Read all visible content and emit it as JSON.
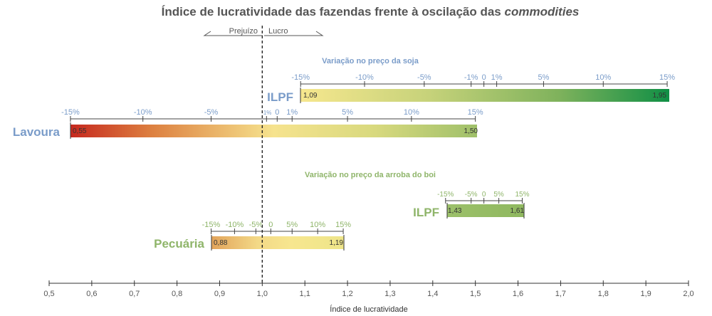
{
  "title_main": "Índice de lucratividade das fazendas frente à oscilação das",
  "title_italic": "commodities",
  "legend": {
    "loss": "Prejuízo",
    "profit": "Lucro"
  },
  "chart_data": {
    "type": "bar",
    "xlabel": "Índice de lucratividade",
    "xlim": [
      0.5,
      2.0
    ],
    "x_ticks": [
      0.5,
      0.6,
      0.7,
      0.8,
      0.9,
      1.0,
      1.1,
      1.2,
      1.3,
      1.4,
      1.5,
      1.6,
      1.7,
      1.8,
      1.9,
      2.0
    ],
    "x_tick_labels": [
      "0,5",
      "0,6",
      "0,7",
      "0,8",
      "0,9",
      "1,0",
      "1,1",
      "1,2",
      "1,3",
      "1,4",
      "1,5",
      "1,6",
      "1,7",
      "1,8",
      "1,9",
      "2,0"
    ],
    "breakeven": 1.0,
    "groups": [
      {
        "heading": "Variação no preço da soja",
        "color": "#7a9cc9",
        "bars": [
          {
            "name": "ILPF",
            "min": 1.09,
            "max": 1.95,
            "min_label": "1,09",
            "max_label": "1,95",
            "scale": [
              {
                "label": "-15%",
                "x": 1.09
              },
              {
                "label": "-10%",
                "x": 1.24
              },
              {
                "label": "-5%",
                "x": 1.38
              },
              {
                "label": "-1%",
                "x": 1.49
              },
              {
                "label": "0",
                "x": 1.52
              },
              {
                "label": "1%",
                "x": 1.55
              },
              {
                "label": "5%",
                "x": 1.66
              },
              {
                "label": "10%",
                "x": 1.8
              },
              {
                "label": "15%",
                "x": 1.95
              }
            ]
          },
          {
            "name": "Lavoura",
            "min": 0.55,
            "max": 1.5,
            "min_label": "0,55",
            "max_label": "1,50",
            "scale": [
              {
                "label": "-15%",
                "x": 0.55
              },
              {
                "label": "-10%",
                "x": 0.72
              },
              {
                "label": "-5%",
                "x": 0.88
              },
              {
                "label": "-1%",
                "x": 1.01
              },
              {
                "label": "0",
                "x": 1.035
              },
              {
                "label": "1%",
                "x": 1.07
              },
              {
                "label": "5%",
                "x": 1.2
              },
              {
                "label": "10%",
                "x": 1.35
              },
              {
                "label": "15%",
                "x": 1.5
              }
            ]
          }
        ]
      },
      {
        "heading": "Variação no preço da arroba do boi",
        "color": "#8fb56a",
        "bars": [
          {
            "name": "ILPF",
            "min": 1.43,
            "max": 1.61,
            "min_label": "1,43",
            "max_label": "1,61",
            "scale": [
              {
                "label": "-15%",
                "x": 1.43
              },
              {
                "label": "-5%",
                "x": 1.49
              },
              {
                "label": "0",
                "x": 1.52
              },
              {
                "label": "5%",
                "x": 1.555
              },
              {
                "label": "15%",
                "x": 1.61
              }
            ]
          },
          {
            "name": "Pecuária",
            "min": 0.88,
            "max": 1.19,
            "min_label": "0,88",
            "max_label": "1,19",
            "scale": [
              {
                "label": "-15%",
                "x": 0.88
              },
              {
                "label": "-10%",
                "x": 0.935
              },
              {
                "label": "-5%",
                "x": 0.985
              },
              {
                "label": "0",
                "x": 1.02
              },
              {
                "label": "5%",
                "x": 1.07
              },
              {
                "label": "10%",
                "x": 1.13
              },
              {
                "label": "15%",
                "x": 1.19
              }
            ]
          }
        ]
      }
    ]
  }
}
